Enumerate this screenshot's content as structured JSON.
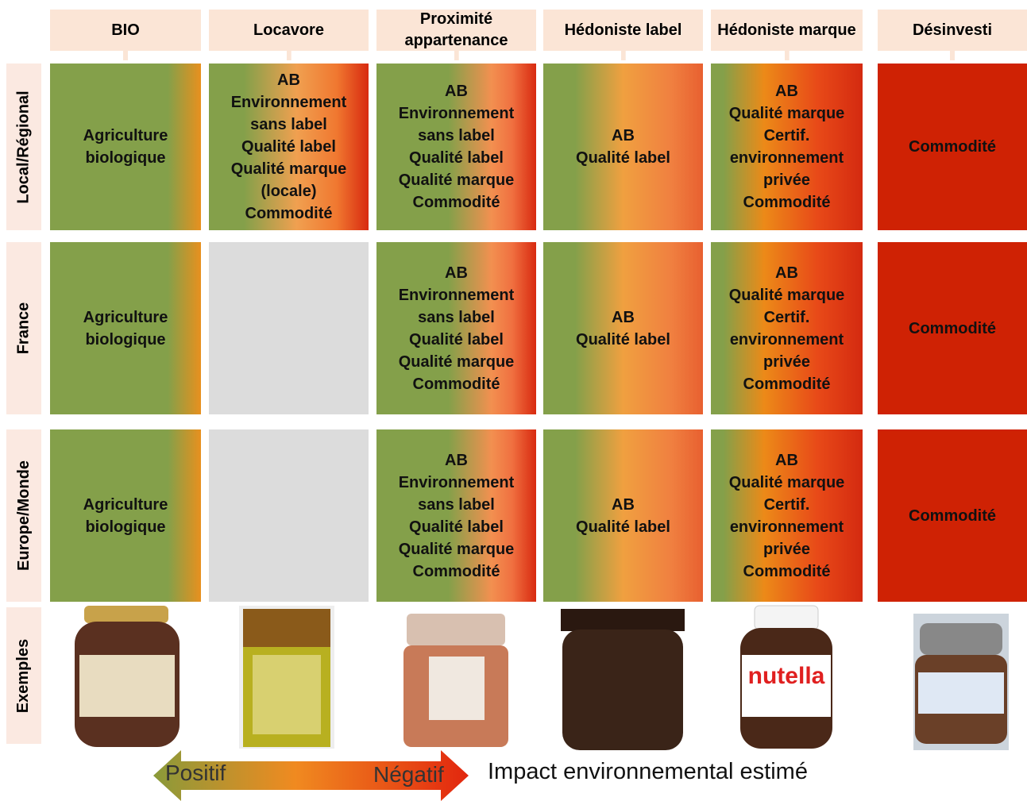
{
  "header": {
    "columns": [
      "BIO",
      "Locavore",
      "Proximité appartenance",
      "Hédoniste label",
      "Hédoniste marque",
      "Désinvesti"
    ]
  },
  "rows": [
    {
      "label": "Local/Régional",
      "cells": [
        [
          "Agriculture",
          "biologique"
        ],
        [
          "AB",
          "Environnement",
          "sans label",
          "Qualité label",
          "Qualité marque",
          "(locale)",
          "Commodité"
        ],
        [
          "AB",
          "Environnement",
          "sans label",
          "Qualité label",
          "Qualité marque",
          "Commodité"
        ],
        [
          "AB",
          "Qualité label"
        ],
        [
          "AB",
          "Qualité marque",
          "Certif.",
          "environnement",
          "privée",
          "Commodité"
        ],
        [
          "Commodité"
        ]
      ]
    },
    {
      "label": "France",
      "cells": [
        [
          "Agriculture",
          "biologique"
        ],
        [],
        [
          "AB",
          "Environnement",
          "sans label",
          "Qualité label",
          "Qualité marque",
          "Commodité"
        ],
        [
          "AB",
          "Qualité label"
        ],
        [
          "AB",
          "Qualité marque",
          "Certif.",
          "environnement",
          "privée",
          "Commodité"
        ],
        [
          "Commodité"
        ]
      ]
    },
    {
      "label": "Europe/Monde",
      "cells": [
        [
          "Agriculture",
          "biologique"
        ],
        [],
        [
          "AB",
          "Environnement",
          "sans label",
          "Qualité label",
          "Qualité marque",
          "Commodité"
        ],
        [
          "AB",
          "Qualité label"
        ],
        [
          "AB",
          "Qualité marque",
          "Certif.",
          "environnement",
          "privée",
          "Commodité"
        ],
        [
          "Commodité"
        ]
      ]
    }
  ],
  "examples": {
    "label": "Exemples"
  },
  "legend": {
    "left": "Positif",
    "right": "Négatif",
    "caption": "Impact environnemental estimé"
  }
}
